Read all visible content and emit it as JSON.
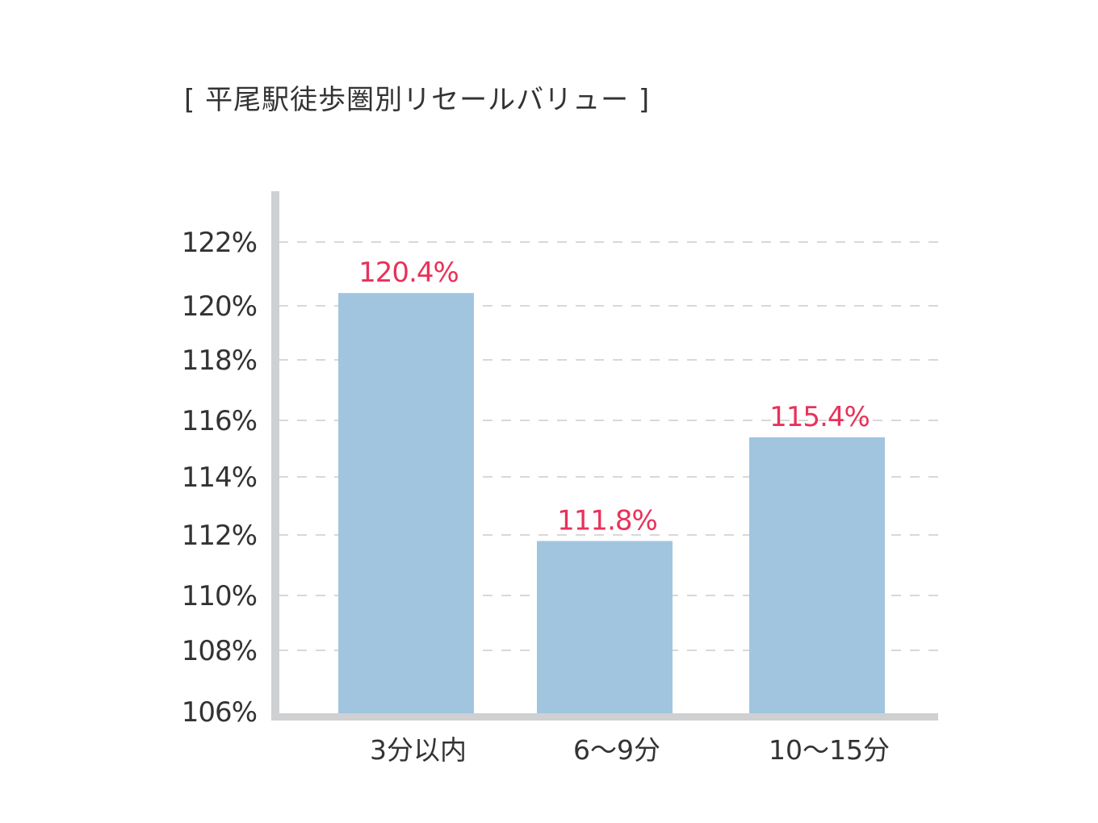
{
  "chart_data": {
    "type": "bar",
    "title": "[ 平尾駅徒歩圏別リセールバリュー ]",
    "categories": [
      "3分以内",
      "6〜9分",
      "10〜15分"
    ],
    "values": [
      120.4,
      111.8,
      115.4
    ],
    "value_labels": [
      "120.4%",
      "111.8%",
      "115.4%"
    ],
    "y_ticks": [
      106,
      108,
      110,
      112,
      114,
      116,
      118,
      120,
      122
    ],
    "y_tick_labels": [
      "106%",
      "108%",
      "110%",
      "112%",
      "114%",
      "116%",
      "118%",
      "120%",
      "122%"
    ],
    "ylim": [
      106,
      124
    ],
    "xlabel": "",
    "ylabel": "",
    "grid": "horizontal-dashed",
    "legend": "none",
    "colors": {
      "bar": "#a1c5df",
      "value_label": "#e8325a",
      "axis": "#cfd0d2",
      "grid": "#cccccc",
      "tick_label": "#333333"
    }
  }
}
